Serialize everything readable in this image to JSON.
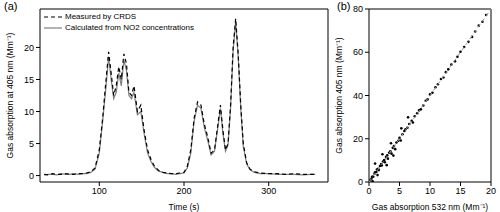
{
  "chart_data": [
    {
      "type": "line",
      "title": "(a)",
      "x_label": "Time (s)",
      "y_label": "Gas absorption at 405 nm (Mm⁻¹)",
      "x": [
        35,
        40,
        45,
        50,
        55,
        60,
        65,
        70,
        75,
        80,
        85,
        90,
        95,
        100,
        104,
        108,
        111,
        114,
        117,
        120,
        123,
        126,
        129,
        132,
        135,
        138,
        141,
        145,
        149,
        153,
        157,
        161,
        165,
        170,
        175,
        180,
        185,
        190,
        195,
        200,
        204,
        208,
        212,
        216,
        220,
        224,
        228,
        232,
        236,
        240,
        243,
        246,
        249,
        252,
        255,
        258,
        261,
        264,
        267,
        270,
        274,
        278,
        283,
        290,
        300,
        310,
        320,
        330,
        340,
        350,
        355
      ],
      "series": [
        {
          "name": "Measured by CRDS",
          "color": "#000000",
          "line_style": "dashed",
          "values": [
            0.2,
            0.1,
            0.3,
            0.2,
            0.2,
            0.3,
            0.2,
            0.2,
            0.3,
            0.3,
            0.4,
            0.6,
            1.2,
            4,
            9,
            15,
            19.3,
            16,
            12.5,
            14,
            17,
            15,
            19,
            17.5,
            13,
            12.5,
            14,
            10,
            11,
            7,
            4,
            2.5,
            1.5,
            0.8,
            0.5,
            0.4,
            0.3,
            0.3,
            0.4,
            0.5,
            1.5,
            4,
            9,
            11.5,
            11,
            8,
            6,
            3.5,
            4,
            8,
            11,
            7,
            4,
            5,
            11,
            20,
            24.5,
            19,
            11,
            5,
            2,
            1,
            0.6,
            0.4,
            0.3,
            0.3,
            0.2,
            0.3,
            0.2,
            0.2,
            0.2
          ]
        },
        {
          "name": "Calculated from NO2 concentrations",
          "color": "#808080",
          "line_style": "solid",
          "values": [
            0.1,
            0.2,
            0.2,
            0.1,
            0.3,
            0.2,
            0.2,
            0.3,
            0.2,
            0.3,
            0.3,
            0.5,
            1,
            3.5,
            8.5,
            14,
            18.5,
            15,
            12,
            13,
            16,
            14,
            18,
            16.5,
            12.5,
            12,
            13,
            9.5,
            10,
            6.5,
            3.5,
            2.2,
            1.3,
            0.7,
            0.5,
            0.3,
            0.3,
            0.2,
            0.3,
            0.4,
            1.2,
            3.5,
            8.5,
            11,
            10.5,
            7.5,
            5.5,
            3.2,
            3.8,
            7.5,
            10.5,
            6.5,
            3.8,
            4.8,
            10.5,
            19.5,
            24,
            18.5,
            10.5,
            4.5,
            1.8,
            0.9,
            0.5,
            0.3,
            0.3,
            0.2,
            0.2,
            0.2,
            0.1,
            0.2,
            0.2
          ]
        }
      ],
      "xlim": [
        30,
        370
      ],
      "xticks": [
        100,
        200,
        300
      ],
      "ylim": [
        -1,
        26
      ],
      "yticks": [
        0,
        5,
        10,
        15,
        20
      ],
      "legend": "upper left"
    },
    {
      "type": "scatter",
      "title": "(b)",
      "x_label": "Gas absorption 532 nm (Mm⁻¹)",
      "y_label": "Gas absorption 405 nm (Mm⁻¹)",
      "series": [
        {
          "type": "scatter",
          "color": "#000000",
          "marker": "circle",
          "x": [
            0.2,
            0.4,
            0.5,
            0.7,
            0.9,
            1.0,
            1.2,
            1.3,
            1.5,
            1.6,
            1.8,
            2.0,
            2.1,
            2.3,
            2.5,
            2.6,
            2.8,
            3.0,
            3.1,
            3.3,
            3.5,
            3.7,
            3.9,
            4.1,
            4.3,
            4.5,
            4.8,
            5.0,
            5.2,
            5.5,
            5.8,
            6.0,
            6.3,
            6.6,
            7.0,
            7.2,
            7.5,
            7.9,
            8.2,
            8.5,
            8.9,
            9.3,
            9.6,
            10.0,
            10.4,
            10.9,
            11.3,
            11.8,
            12.2,
            12.6,
            13.0,
            13.5,
            14.1,
            14.5,
            15.0,
            15.6,
            16.3,
            16.9,
            17.4,
            18.0,
            18.6,
            19.2,
            1.0,
            2.2,
            3.6,
            0.6,
            1.4,
            4.0,
            6.4,
            2.9,
            5.3
          ],
          "values": [
            0.8,
            1.5,
            2.4,
            2.5,
            3.8,
            4.5,
            4.6,
            5.8,
            6.1,
            5.5,
            7.4,
            8.3,
            7.6,
            9.5,
            10.2,
            9.1,
            11.6,
            12.3,
            10.8,
            13.5,
            14.2,
            13.1,
            15.8,
            16.6,
            15.2,
            18.3,
            19.1,
            20.4,
            19.2,
            22.1,
            23.6,
            24.4,
            25.1,
            26.8,
            28.3,
            27.5,
            30.4,
            31.8,
            33.1,
            33.6,
            35.4,
            37.6,
            38.2,
            40.5,
            41.3,
            43.8,
            45.2,
            47.6,
            48.3,
            50.8,
            52.1,
            54.3,
            55.8,
            57.9,
            60.2,
            62.4,
            64.8,
            67.1,
            69.6,
            72.3,
            74.1,
            77.2,
            8.5,
            12.8,
            17.9,
            0.3,
            3.2,
            12.2,
            29.9,
            7.8,
            24.8
          ]
        },
        {
          "type": "line",
          "color": "#999999",
          "line_style": "dashed",
          "x": [
            0,
            20
          ],
          "values": [
            0,
            80
          ]
        }
      ],
      "xlim": [
        0,
        20
      ],
      "xticks": [
        0,
        5,
        10,
        15,
        20
      ],
      "ylim": [
        0,
        80
      ],
      "yticks": [
        0,
        20,
        40,
        60,
        80
      ]
    }
  ]
}
